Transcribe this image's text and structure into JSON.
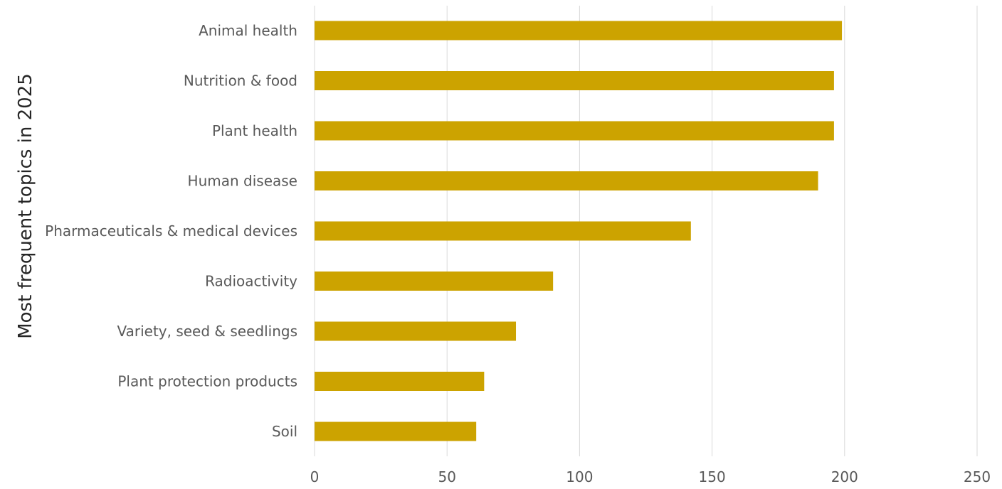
{
  "chart_data": {
    "type": "bar",
    "orientation": "horizontal",
    "title": "",
    "xlabel": "",
    "ylabel": "Most frequent topics in 2025",
    "categories": [
      "Animal health",
      "Nutrition & food",
      "Plant health",
      "Human disease",
      "Pharmaceuticals & medical devices",
      "Radioactivity",
      "Variety, seed & seedlings",
      "Plant protection products",
      "Soil"
    ],
    "values": [
      199,
      196,
      196,
      190,
      142,
      90,
      76,
      64,
      61
    ],
    "xlim": [
      0,
      250
    ],
    "xticks": [
      0,
      50,
      100,
      150,
      200,
      250
    ],
    "grid": "vertical",
    "legend": "none",
    "colors": {
      "bar": "#CCA300",
      "grid": "#D9D9D9",
      "text": "#595959"
    }
  }
}
